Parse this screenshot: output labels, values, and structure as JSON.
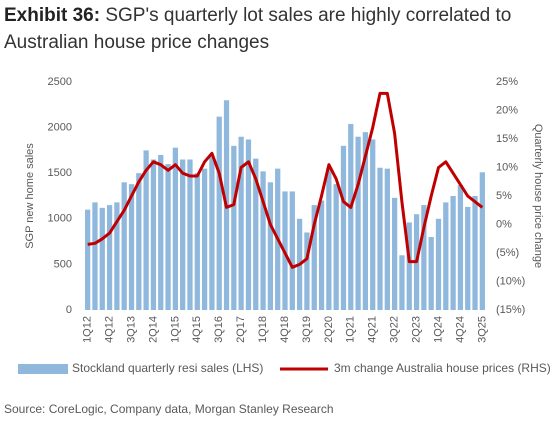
{
  "chart_data": {
    "type": "bar_line",
    "title_label": "Exhibit 36:",
    "title": "SGP's quarterly lot sales are highly correlated to Australian house price changes",
    "ylabel": "SGP new home sales",
    "y2label": "Quarterly house price change",
    "source": "Source: CoreLogic, Company data, Morgan Stanley Research",
    "categories": [
      "1Q12",
      null,
      null,
      "4Q12",
      null,
      null,
      "3Q13",
      null,
      null,
      "2Q14",
      null,
      null,
      "1Q15",
      null,
      null,
      "4Q15",
      null,
      null,
      "3Q16",
      null,
      null,
      "2Q17",
      null,
      null,
      "1Q18",
      null,
      null,
      "4Q18",
      null,
      null,
      "3Q19",
      null,
      null,
      "2Q20",
      null,
      null,
      "1Q21",
      null,
      null,
      "4Q21",
      null,
      null,
      "3Q22",
      null,
      null,
      "2Q23",
      null,
      null,
      "1Q24",
      null,
      null,
      "4Q24",
      null,
      null,
      "3Q25"
    ],
    "series": [
      {
        "name": "Stockland quarterly resi sales (LHS)",
        "type": "bar",
        "color": "#8fb8dc",
        "values": [
          1100,
          1180,
          1120,
          1150,
          1180,
          1400,
          1380,
          1500,
          1750,
          1650,
          1700,
          1600,
          1780,
          1650,
          1650,
          1500,
          1550,
          1680,
          2120,
          2300,
          1800,
          1900,
          1870,
          1660,
          1520,
          1400,
          1550,
          1300,
          1300,
          1000,
          850,
          1150,
          1200,
          1560,
          1380,
          1800,
          2040,
          1900,
          1950,
          1870,
          1560,
          1550,
          1230,
          600,
          960,
          1050,
          1150,
          800,
          1000,
          1180,
          1250,
          1370,
          1130,
          1250,
          1510
        ]
      },
      {
        "name": "3m change Australia house prices (RHS)",
        "type": "line",
        "axis": "y2",
        "color": "#c00000",
        "values": [
          -3.5,
          -3.3,
          -2.5,
          -1.5,
          0.5,
          2.5,
          5,
          7.5,
          9.5,
          11,
          10.5,
          9.5,
          10.5,
          9,
          8.5,
          8.5,
          11,
          12.5,
          9,
          3,
          3.5,
          10,
          11,
          8,
          4,
          0,
          -2.5,
          -5,
          -7.5,
          -7,
          -6,
          0,
          5,
          10.5,
          8,
          4,
          3,
          7,
          12,
          17,
          23,
          23,
          16,
          4,
          -6.5,
          -6.5,
          -0.5,
          5,
          10,
          11,
          9,
          7,
          5,
          4,
          3
        ]
      }
    ],
    "ylim": [
      0,
      2500
    ],
    "yticks": [
      0,
      500,
      1000,
      1500,
      2000,
      2500
    ],
    "y2lim": [
      -15,
      25
    ],
    "y2ticks": [
      {
        "value": -15,
        "label": "(15%)"
      },
      {
        "value": -10,
        "label": "(10%)"
      },
      {
        "value": -5,
        "label": "(5%)"
      },
      {
        "value": 0,
        "label": "0%"
      },
      {
        "value": 5,
        "label": "5%"
      },
      {
        "value": 10,
        "label": "10%"
      },
      {
        "value": 15,
        "label": "15%"
      },
      {
        "value": 20,
        "label": "20%"
      },
      {
        "value": 25,
        "label": "25%"
      }
    ],
    "grid": false
  }
}
